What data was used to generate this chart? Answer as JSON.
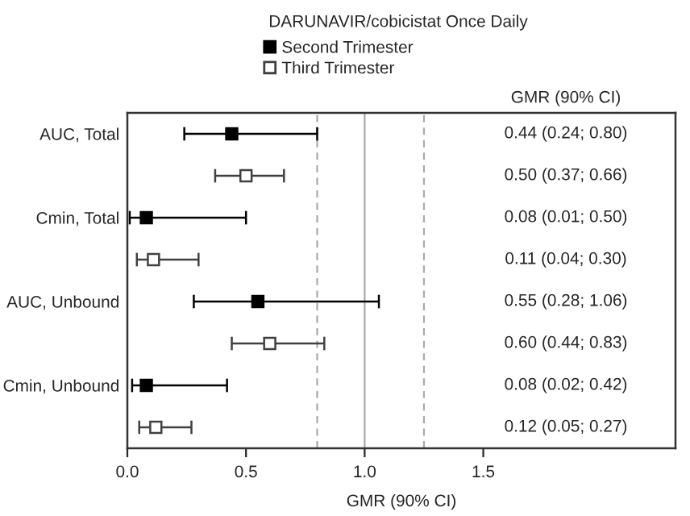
{
  "chart_data": {
    "type": "scatter",
    "orientation": "horizontal",
    "title": "DARUNAVIR/cobicistat Once Daily",
    "xlabel": "GMR (90% CI)",
    "categories": [
      "AUC, Total",
      null,
      "Cmin, Total",
      null,
      "AUC, Unbound",
      null,
      "Cmin, Unbound",
      null
    ],
    "series": [
      {
        "name": "Second Trimester",
        "color": "#000000",
        "values": [
          0.44,
          null,
          0.08,
          null,
          0.55,
          null,
          0.08,
          null
        ],
        "errors": [
          [
            0.24,
            0.8
          ],
          null,
          [
            0.01,
            0.5
          ],
          null,
          [
            0.28,
            1.06
          ],
          null,
          [
            0.02,
            0.42
          ],
          null
        ]
      },
      {
        "name": "Third Trimester",
        "color": "#404040",
        "values": [
          null,
          0.5,
          null,
          0.11,
          null,
          0.6,
          null,
          0.12
        ],
        "errors": [
          null,
          [
            0.37,
            0.66
          ],
          null,
          [
            0.04,
            0.3
          ],
          null,
          [
            0.44,
            0.83
          ],
          null,
          [
            0.05,
            0.27
          ]
        ]
      }
    ],
    "xlim": [
      0,
      2.31
    ],
    "xticks": [
      {
        "value": 0,
        "label": "0.0"
      },
      {
        "value": 0.5,
        "label": "0.5"
      },
      {
        "value": 1.0,
        "label": "1.0"
      },
      {
        "value": 1.5,
        "label": "1.5"
      }
    ],
    "ref_lines": [
      {
        "axis": "x",
        "value": 0.8,
        "label": null,
        "color": "#aaaaaa",
        "line_style": "dashed"
      },
      {
        "axis": "x",
        "value": 1.0,
        "label": null,
        "color": "#aaaaaa",
        "line_style": "solid"
      },
      {
        "axis": "x",
        "value": 1.25,
        "label": null,
        "color": "#aaaaaa",
        "line_style": "dashed"
      }
    ],
    "annotations": [
      "GMR (90% CI)",
      "0.44 (0.24; 0.80)",
      "0.50 (0.37; 0.66)",
      "0.08 (0.01; 0.50)",
      "0.11 (0.04; 0.30)",
      "0.55 (0.28; 1.06)",
      "0.60 (0.44; 0.83)",
      "0.08 (0.02; 0.42)",
      "0.12 (0.05; 0.27)"
    ],
    "marker": "square",
    "legend": "top",
    "grid": false
  }
}
